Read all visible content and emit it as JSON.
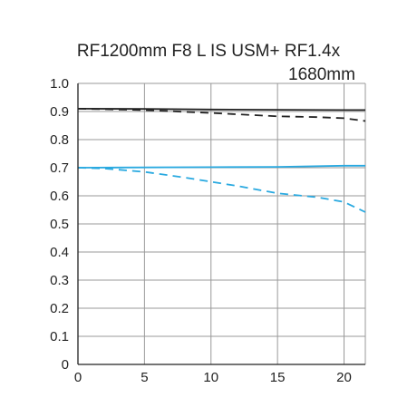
{
  "chart_data": {
    "type": "line",
    "title": "RF1200mm F8 L IS USM+ RF1.4x",
    "subtitle": "1680mm",
    "xlabel": "",
    "ylabel": "",
    "xlim": [
      0,
      21.6
    ],
    "ylim": [
      0,
      1.0
    ],
    "x_ticks": [
      0,
      5,
      10,
      15,
      20
    ],
    "y_ticks": [
      0,
      0.1,
      0.2,
      0.3,
      0.4,
      0.5,
      0.6,
      0.7,
      0.8,
      0.9,
      1.0
    ],
    "x_tick_labels": [
      "0",
      "5",
      "10",
      "15",
      "20"
    ],
    "y_tick_labels": [
      "0",
      "0.1",
      "0.2",
      "0.3",
      "0.4",
      "0.5",
      "0.6",
      "0.7",
      "0.8",
      "0.9",
      "1.0"
    ],
    "grid": true,
    "colors": {
      "black": "#222222",
      "blue": "#29a9e0",
      "grid": "#999999"
    },
    "series": [
      {
        "color": "#222222",
        "dash": "solid",
        "x": [
          0,
          5,
          10,
          15,
          20,
          21.6
        ],
        "y": [
          0.91,
          0.909,
          0.907,
          0.906,
          0.905,
          0.905
        ]
      },
      {
        "color": "#222222",
        "dash": "dashed",
        "x": [
          0,
          5,
          10,
          15,
          18,
          20,
          21.6
        ],
        "y": [
          0.91,
          0.905,
          0.895,
          0.883,
          0.88,
          0.876,
          0.866
        ]
      },
      {
        "color": "#29a9e0",
        "dash": "solid",
        "x": [
          0,
          5,
          10,
          15,
          20,
          21.6
        ],
        "y": [
          0.7,
          0.701,
          0.702,
          0.703,
          0.707,
          0.707
        ]
      },
      {
        "color": "#29a9e0",
        "dash": "dashed",
        "x": [
          0,
          2,
          5,
          8,
          10,
          12,
          15,
          18,
          20,
          21.6
        ],
        "y": [
          0.7,
          0.697,
          0.685,
          0.665,
          0.65,
          0.635,
          0.609,
          0.595,
          0.578,
          0.542
        ]
      }
    ]
  }
}
